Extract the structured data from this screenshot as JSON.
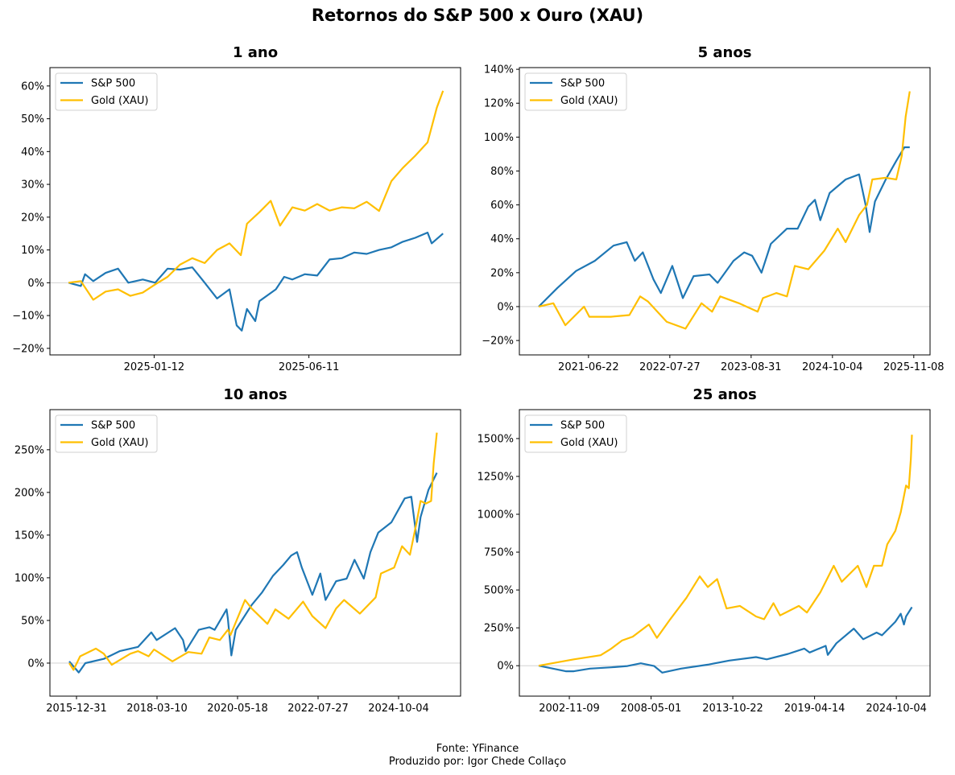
{
  "title": "Retornos do S&P 500 x Ouro (XAU)",
  "footer": {
    "source": "Fonte: YFinance",
    "author": "Produzido por: Igor Chede Collaço"
  },
  "colors": {
    "sp500": "#1f77b4",
    "gold": "#ffbf00",
    "zero_line": "#cccccc"
  },
  "chart_data": [
    {
      "type": "line",
      "title": "1 ano",
      "start_date": "2024-10-21",
      "x_unit": "days since start_date",
      "xlim": [
        -18,
        380
      ],
      "ylim": [
        -22,
        65.6
      ],
      "yticks": [
        -20,
        -10,
        0,
        10,
        20,
        30,
        40,
        50,
        60
      ],
      "y_format": "percent",
      "xticks": [
        "2025-01-12",
        "2025-06-11"
      ],
      "legend": "top-left",
      "grid": false,
      "series": [
        {
          "name": "S&P 500",
          "color_key": "sp500",
          "x": [
            0,
            12,
            16,
            24,
            36,
            48,
            58,
            72,
            84,
            96,
            108,
            120,
            132,
            144,
            156,
            163,
            168,
            173,
            181,
            185,
            201,
            209,
            217,
            229,
            241,
            253,
            265,
            277,
            289,
            301,
            313,
            324,
            336,
            348,
            352,
            363
          ],
          "y": [
            0,
            -1,
            2.6,
            0.5,
            3,
            4.3,
            0,
            1,
            0,
            4.3,
            4,
            4.7,
            0,
            -4.8,
            -2,
            -13,
            -14.6,
            -8,
            -11.7,
            -5.6,
            -2,
            1.8,
            1,
            2.6,
            2.2,
            7.1,
            7.5,
            9.2,
            8.8,
            10,
            10.8,
            12.5,
            13.7,
            15.3,
            12,
            15
          ]
        },
        {
          "name": "Gold (XAU)",
          "color_key": "gold",
          "x": [
            0,
            12,
            24,
            36,
            48,
            60,
            72,
            84,
            96,
            108,
            120,
            132,
            144,
            156,
            167,
            173,
            185,
            196,
            205,
            217,
            229,
            241,
            253,
            265,
            277,
            289,
            301,
            313,
            324,
            336,
            348,
            357,
            363
          ],
          "y": [
            0,
            0.5,
            -5.2,
            -2.7,
            -2,
            -4,
            -3,
            -0.5,
            1.8,
            5.5,
            7.5,
            6,
            10,
            12,
            8.4,
            18,
            21.5,
            25,
            17.4,
            23,
            22,
            24,
            22,
            23,
            22.7,
            24.7,
            21.9,
            31,
            35,
            38.7,
            42.8,
            53.4,
            58.5
          ]
        }
      ]
    },
    {
      "type": "line",
      "title": "5 anos",
      "start_date": "2020-10-20",
      "x_unit": "days since start_date",
      "xlim": [
        -95,
        1925
      ],
      "ylim": [
        -28.5,
        141
      ],
      "yticks": [
        -20,
        0,
        20,
        40,
        60,
        80,
        100,
        120,
        140
      ],
      "y_format": "percent",
      "xticks": [
        "2021-06-22",
        "2022-07-27",
        "2023-08-31",
        "2024-10-04",
        "2025-11-08"
      ],
      "legend": "top-left",
      "grid": false,
      "series": [
        {
          "name": "S&P 500",
          "color_key": "sp500",
          "x": [
            0,
            92,
            184,
            276,
            368,
            433,
            473,
            512,
            565,
            601,
            657,
            709,
            762,
            840,
            880,
            958,
            1011,
            1050,
            1096,
            1142,
            1221,
            1274,
            1326,
            1359,
            1385,
            1431,
            1510,
            1576,
            1608,
            1628,
            1654,
            1707,
            1759,
            1799,
            1825
          ],
          "y": [
            0,
            11,
            21,
            27,
            36,
            38,
            27,
            32,
            16,
            8,
            24,
            5,
            18,
            19,
            14,
            27,
            32,
            30,
            20,
            37,
            46,
            46,
            59,
            63,
            51,
            67,
            75,
            78,
            60,
            44,
            62,
            75,
            86,
            94,
            94
          ]
        },
        {
          "name": "Gold (XAU)",
          "color_key": "gold",
          "x": [
            0,
            72,
            131,
            223,
            249,
            355,
            446,
            499,
            538,
            630,
            722,
            801,
            853,
            893,
            985,
            1077,
            1103,
            1169,
            1221,
            1260,
            1326,
            1405,
            1471,
            1510,
            1576,
            1615,
            1641,
            1707,
            1759,
            1786,
            1805,
            1825
          ],
          "y": [
            0,
            2,
            -11,
            0,
            -6,
            -6,
            -5,
            6,
            3,
            -9,
            -13,
            2,
            -3,
            6,
            2,
            -3,
            5,
            8,
            6,
            24,
            22,
            33,
            46,
            38,
            54,
            60,
            75,
            76,
            75,
            89,
            112,
            127
          ]
        }
      ]
    },
    {
      "type": "line",
      "title": "10 anos",
      "start_date": "2015-10-20",
      "x_unit": "days since start_date",
      "xlim": [
        -192,
        3888
      ],
      "ylim": [
        -38.7,
        297
      ],
      "yticks": [
        0,
        50,
        100,
        150,
        200,
        250
      ],
      "y_format": "percent",
      "xticks": [
        "2015-12-31",
        "2018-03-10",
        "2020-05-18",
        "2022-07-27",
        "2024-10-04"
      ],
      "legend": "top-left",
      "grid": false,
      "series": [
        {
          "name": "S&P 500",
          "color_key": "sp500",
          "x": [
            0,
            94,
            160,
            343,
            501,
            684,
            815,
            868,
            1051,
            1130,
            1156,
            1287,
            1392,
            1445,
            1563,
            1576,
            1610,
            1654,
            1812,
            1917,
            2022,
            2126,
            2205,
            2263,
            2310,
            2415,
            2494,
            2546,
            2651,
            2756,
            2834,
            2926,
            2992,
            3070,
            3201,
            3333,
            3398,
            3456,
            3490,
            3569,
            3652
          ],
          "y": [
            2,
            -11,
            0,
            5,
            14,
            19,
            36,
            27,
            41,
            27,
            14,
            39,
            42,
            39,
            63,
            52,
            9,
            39,
            68,
            83,
            102,
            115,
            126,
            130,
            112,
            80,
            105,
            74,
            96,
            99,
            121,
            99,
            130,
            153,
            165,
            193,
            195,
            142,
            171,
            203,
            223
          ]
        },
        {
          "name": "Gold (XAU)",
          "color_key": "gold",
          "x": [
            0,
            42,
            108,
            265,
            343,
            422,
            606,
            684,
            789,
            842,
            1025,
            1183,
            1314,
            1392,
            1497,
            1576,
            1602,
            1746,
            1812,
            1969,
            2048,
            2179,
            2323,
            2415,
            2546,
            2651,
            2730,
            2887,
            3044,
            3097,
            3228,
            3306,
            3385,
            3451,
            3490,
            3542,
            3595,
            3621,
            3652
          ],
          "y": [
            0,
            -8,
            8,
            17,
            11,
            -2,
            11,
            14,
            8,
            16,
            2,
            13,
            11,
            30,
            27,
            39,
            33,
            74,
            64,
            46,
            63,
            52,
            72,
            55,
            41,
            64,
            74,
            58,
            77,
            105,
            112,
            137,
            127,
            165,
            190,
            187,
            190,
            234,
            270
          ]
        }
      ]
    },
    {
      "type": "line",
      "title": "25 anos",
      "start_date": "2000-10-21",
      "x_unit": "days since start_date",
      "xlim": [
        -473,
        9574
      ],
      "ylim": [
        -201,
        1691
      ],
      "yticks": [
        0,
        250,
        500,
        750,
        1000,
        1250,
        1500
      ],
      "y_format": "percent",
      "xticks": [
        "2002-11-09",
        "2008-05-01",
        "2013-10-22",
        "2019-04-14",
        "2024-10-04"
      ],
      "legend": "top-left",
      "grid": false,
      "series": [
        {
          "name": "S&P 500",
          "color_key": "sp500",
          "x": [
            0,
            662,
            859,
            1252,
            1776,
            2170,
            2497,
            2825,
            3022,
            3481,
            4136,
            4661,
            5316,
            5578,
            6103,
            6496,
            6627,
            7020,
            7073,
            7283,
            7709,
            7938,
            8266,
            8397,
            8725,
            8856,
            8935,
            8987,
            9131
          ],
          "y": [
            0,
            -37,
            -37,
            -19,
            -11,
            -2,
            16,
            -2,
            -46,
            -19,
            7,
            34,
            57,
            42,
            78,
            113,
            87,
            131,
            71,
            148,
            245,
            175,
            219,
            201,
            290,
            343,
            272,
            325,
            387
          ]
        },
        {
          "name": "Gold (XAU)",
          "color_key": "gold",
          "x": [
            0,
            859,
            1514,
            1776,
            2039,
            2301,
            2694,
            2891,
            3219,
            3612,
            3940,
            4136,
            4366,
            4595,
            4923,
            5316,
            5513,
            5742,
            5906,
            6365,
            6562,
            6889,
            7217,
            7414,
            7807,
            8017,
            8200,
            8397,
            8528,
            8725,
            8856,
            8987,
            9053,
            9105,
            9131
          ],
          "y": [
            0,
            42,
            69,
            113,
            166,
            192,
            272,
            184,
            307,
            448,
            590,
            519,
            572,
            378,
            395,
            325,
            307,
            413,
            332,
            395,
            351,
            484,
            660,
            554,
            660,
            519,
            660,
            660,
            802,
            890,
            1013,
            1190,
            1172,
            1367,
            1525
          ]
        }
      ]
    }
  ]
}
